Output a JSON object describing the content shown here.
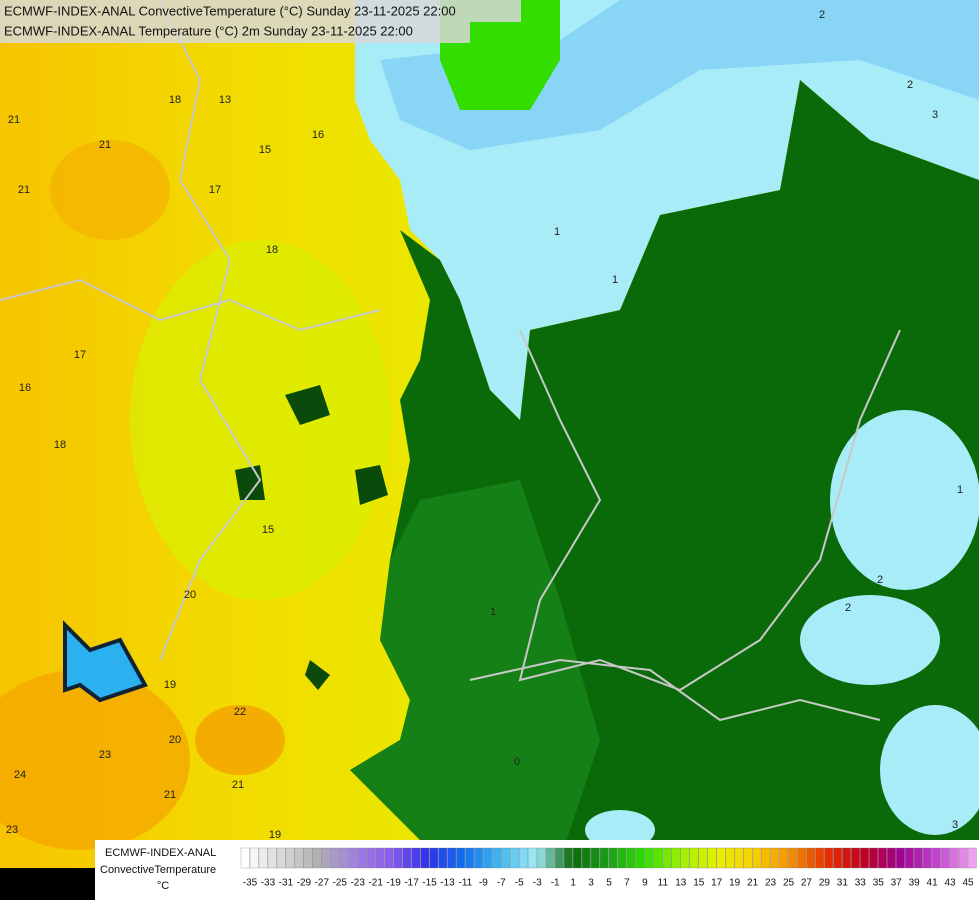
{
  "header": {
    "lines": [
      "ECMWF-INDEX-ANAL ConvectiveTemperature (°C) Sunday 23-11-2025 22:00",
      "ECMWF-INDEX-ANAL Temperature (°C) 2m Sunday 23-11-2025 22:00"
    ]
  },
  "contour_labels": [
    21,
    21,
    21,
    18,
    13,
    15,
    16,
    17,
    18,
    17,
    16,
    18,
    15,
    20,
    19,
    22,
    20,
    23,
    24,
    21,
    21,
    23,
    19,
    2,
    2,
    3,
    1,
    1,
    1,
    1,
    2,
    2,
    0,
    3
  ],
  "legend": {
    "title": "ECMWF-INDEX-ANAL",
    "variable": "ConvectiveTemperature",
    "unit": "°C",
    "ticks": [
      -35,
      -33,
      -31,
      -29,
      -27,
      -25,
      -23,
      -21,
      -19,
      -17,
      -15,
      -13,
      -11,
      -9,
      -7,
      -5,
      -3,
      -1,
      1,
      3,
      5,
      7,
      9,
      11,
      13,
      15,
      17,
      19,
      21,
      23,
      25,
      27,
      29,
      31,
      33,
      35,
      37,
      39,
      41,
      43,
      45
    ]
  }
}
